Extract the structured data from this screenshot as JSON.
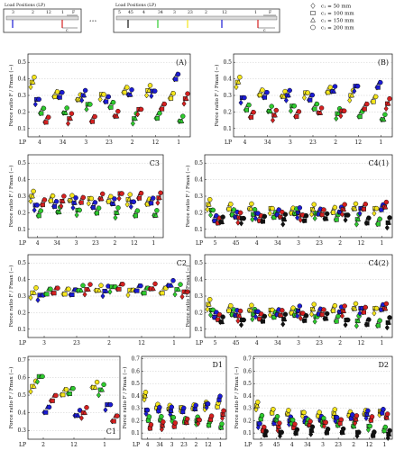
{
  "header": {
    "box_left_title": "Load Positions (LP)",
    "box_right_title": "Load Positions (LP)",
    "box_left_positions": [
      "3",
      "2",
      "12",
      "1"
    ],
    "box_right_positions": [
      "5",
      "45",
      "4",
      "34",
      "3",
      "23",
      "2",
      "12",
      "1"
    ],
    "force_label": "F",
    "force_sub": "max",
    "dim_label": "c",
    "dim_sub": "1",
    "ellipsis": "∘∘∘",
    "legend": [
      {
        "marker": "diamond",
        "label": "c₁ = 50 mm"
      },
      {
        "marker": "square",
        "label": "c₁ = 100 mm"
      },
      {
        "marker": "triangle",
        "label": "c₁ = 150 mm"
      },
      {
        "marker": "circle",
        "label": "c₁ = 200 mm"
      }
    ]
  },
  "colors": {
    "yellow": "#f5e61c",
    "green": "#2ecc2e",
    "blue": "#1b1bd6",
    "red": "#d62020",
    "black": "#111111",
    "grid": "#bbbbbb"
  },
  "chart_data": [
    {
      "id": "A",
      "label": "(A)",
      "label_pos": "top-right",
      "type": "scatter",
      "ylabel": "Force ratio F / Fmax (−)",
      "yticks": [
        "0.1",
        "0.2",
        "0.3",
        "0.4",
        "0.5"
      ],
      "ylim": [
        0.05,
        0.55
      ],
      "xlabel_prefix": "LP",
      "categories": [
        "4",
        "34",
        "3",
        "23",
        "2",
        "12",
        "1"
      ],
      "show_xticks": true,
      "series": [
        {
          "color": "yellow",
          "values": [
            0.38,
            0.31,
            0.28,
            0.3,
            0.33,
            0.33,
            0.3
          ]
        },
        {
          "color": "blue",
          "values": [
            0.27,
            0.3,
            0.3,
            0.28,
            0.31,
            0.32,
            0.41
          ]
        },
        {
          "color": "green",
          "values": [
            0.21,
            0.2,
            0.24,
            0.24,
            0.16,
            0.18,
            0.15
          ]
        },
        {
          "color": "red",
          "values": [
            0.15,
            0.16,
            0.16,
            0.18,
            0.21,
            0.23,
            0.28
          ]
        }
      ]
    },
    {
      "id": "B",
      "label": "(B)",
      "label_pos": "top-right",
      "type": "scatter",
      "ylabel": "Force ratio F / Fmax (−)",
      "yticks": [
        "0.1",
        "0.2",
        "0.3",
        "0.4",
        "0.5"
      ],
      "ylim": [
        0.05,
        0.55
      ],
      "xlabel_prefix": "LP",
      "categories": [
        "4",
        "34",
        "3",
        "23",
        "2",
        "12",
        "1"
      ],
      "show_xticks": true,
      "series": [
        {
          "color": "yellow",
          "values": [
            0.38,
            0.32,
            0.3,
            0.31,
            0.33,
            0.3,
            0.28
          ]
        },
        {
          "color": "blue",
          "values": [
            0.28,
            0.3,
            0.3,
            0.29,
            0.33,
            0.35,
            0.36
          ]
        },
        {
          "color": "green",
          "values": [
            0.23,
            0.21,
            0.23,
            0.23,
            0.19,
            0.19,
            0.16
          ]
        },
        {
          "color": "red",
          "values": [
            0.18,
            0.18,
            0.19,
            0.2,
            0.2,
            0.23,
            0.25
          ]
        }
      ]
    },
    {
      "id": "C3",
      "label": "C3",
      "label_pos": "top-right",
      "type": "scatter",
      "ylabel": "Force ratio F / Fmax (−)",
      "yticks": [
        "0.1",
        "0.2",
        "0.3",
        "0.4",
        "0.5"
      ],
      "ylim": [
        0.05,
        0.55
      ],
      "xlabel_prefix": "LP",
      "categories": [
        "4",
        "34",
        "3",
        "23",
        "2",
        "12",
        "1"
      ],
      "show_xticks": true,
      "series": [
        {
          "color": "yellow",
          "values": [
            0.3,
            0.29,
            0.28,
            0.28,
            0.28,
            0.28,
            0.27
          ]
        },
        {
          "color": "blue",
          "values": [
            0.24,
            0.25,
            0.26,
            0.25,
            0.26,
            0.26,
            0.27
          ]
        },
        {
          "color": "green",
          "values": [
            0.2,
            0.21,
            0.21,
            0.21,
            0.2,
            0.2,
            0.19
          ]
        },
        {
          "color": "red",
          "values": [
            0.26,
            0.27,
            0.28,
            0.29,
            0.31,
            0.3,
            0.29
          ]
        }
      ]
    },
    {
      "id": "C4(1)",
      "label": "C4(1)",
      "label_pos": "top-right",
      "type": "scatter",
      "ylabel": "Force ratio F / Fmax (−)",
      "yticks": [
        "0.1",
        "0.2",
        "0.3",
        "0.4",
        "0.5"
      ],
      "ylim": [
        0.05,
        0.55
      ],
      "xlabel_prefix": "LP",
      "categories": [
        "5",
        "45",
        "4",
        "34",
        "3",
        "23",
        "2",
        "12",
        "1"
      ],
      "show_xticks": true,
      "series": [
        {
          "color": "yellow",
          "values": [
            0.25,
            0.24,
            0.23,
            0.22,
            0.21,
            0.22,
            0.22,
            0.23,
            0.22
          ]
        },
        {
          "color": "green",
          "values": [
            0.21,
            0.2,
            0.19,
            0.19,
            0.2,
            0.19,
            0.17,
            0.16,
            0.15
          ]
        },
        {
          "color": "blue",
          "values": [
            0.17,
            0.18,
            0.19,
            0.2,
            0.2,
            0.21,
            0.21,
            0.22,
            0.23
          ]
        },
        {
          "color": "red",
          "values": [
            0.15,
            0.17,
            0.17,
            0.18,
            0.18,
            0.2,
            0.22,
            0.24,
            0.24
          ]
        },
        {
          "color": "black",
          "values": [
            0.15,
            0.16,
            0.16,
            0.16,
            0.17,
            0.17,
            0.18,
            0.15,
            0.14
          ]
        }
      ]
    },
    {
      "id": "C2",
      "label": "C2",
      "label_pos": "top-right",
      "type": "scatter",
      "ylabel": "Force ratio F / Fmax (−)",
      "yticks": [
        "0.1",
        "0.2",
        "0.3",
        "0.4",
        "0.5"
      ],
      "ylim": [
        0.05,
        0.55
      ],
      "xlabel_prefix": "LP",
      "categories": [
        "3",
        "23",
        "2",
        "12",
        "1"
      ],
      "show_xticks": true,
      "series": [
        {
          "color": "yellow",
          "values": [
            0.32,
            0.33,
            0.34,
            0.33,
            0.33
          ]
        },
        {
          "color": "blue",
          "values": [
            0.3,
            0.32,
            0.33,
            0.35,
            0.37
          ]
        },
        {
          "color": "green",
          "values": [
            0.33,
            0.34,
            0.35,
            0.33,
            0.34
          ]
        },
        {
          "color": "red",
          "values": [
            0.33,
            0.34,
            0.36,
            0.35,
            0.32
          ]
        }
      ]
    },
    {
      "id": "C4(2)",
      "label": "C4(2)",
      "label_pos": "top-right",
      "type": "scatter",
      "ylabel": "Force ratio F / Fmax (−)",
      "yticks": [
        "0.1",
        "0.2",
        "0.3",
        "0.4",
        "0.5"
      ],
      "ylim": [
        0.05,
        0.55
      ],
      "xlabel_prefix": "LP",
      "categories": [
        "5",
        "45",
        "4",
        "34",
        "3",
        "23",
        "2",
        "12",
        "1"
      ],
      "show_xticks": true,
      "series": [
        {
          "color": "yellow",
          "values": [
            0.25,
            0.23,
            0.22,
            0.21,
            0.21,
            0.22,
            0.23,
            0.23,
            0.22
          ]
        },
        {
          "color": "green",
          "values": [
            0.21,
            0.2,
            0.19,
            0.19,
            0.19,
            0.17,
            0.16,
            0.15,
            0.14
          ]
        },
        {
          "color": "blue",
          "values": [
            0.19,
            0.19,
            0.2,
            0.2,
            0.21,
            0.21,
            0.21,
            0.22,
            0.23
          ]
        },
        {
          "color": "red",
          "values": [
            0.17,
            0.18,
            0.18,
            0.19,
            0.19,
            0.2,
            0.21,
            0.22,
            0.23
          ]
        },
        {
          "color": "black",
          "values": [
            0.15,
            0.15,
            0.16,
            0.16,
            0.17,
            0.17,
            0.15,
            0.14,
            0.14
          ]
        }
      ]
    },
    {
      "id": "C1",
      "label": "C1",
      "label_pos": "bottom-right",
      "type": "scatter",
      "ylabel": "Force ratio F / Fmax (−)",
      "yticks": [
        "0.3",
        "0.4",
        "0.5",
        "0.6",
        "0.7"
      ],
      "ylim": [
        0.25,
        0.72
      ],
      "xlabel_prefix": "LP",
      "categories": [
        "2",
        "12",
        "1"
      ],
      "show_xticks": true,
      "series": [
        {
          "color": "yellow",
          "values": [
            0.55,
            0.52,
            0.55
          ]
        },
        {
          "color": "green",
          "values": [
            0.6,
            0.52,
            0.53
          ]
        },
        {
          "color": "blue",
          "values": [
            0.42,
            0.39,
            0.44
          ]
        },
        {
          "color": "red",
          "values": [
            0.48,
            0.4,
            0.37
          ]
        }
      ]
    },
    {
      "id": "D1",
      "label": "D1",
      "label_pos": "top-right",
      "type": "scatter",
      "ylabel": "Force ratio F / Fmax (−)",
      "yticks": [
        "0.1",
        "0.2",
        "0.3",
        "0.4",
        "0.5",
        "0.6",
        "0.7"
      ],
      "ylim": [
        0.05,
        0.72
      ],
      "xlabel_prefix": "LP",
      "categories": [
        "4",
        "34",
        "3",
        "23",
        "2",
        "12",
        "1"
      ],
      "show_xticks": true,
      "series": [
        {
          "color": "yellow",
          "values": [
            0.4,
            0.32,
            0.3,
            0.3,
            0.31,
            0.32,
            0.33
          ]
        },
        {
          "color": "blue",
          "values": [
            0.28,
            0.29,
            0.28,
            0.29,
            0.3,
            0.33,
            0.38
          ]
        },
        {
          "color": "green",
          "values": [
            0.22,
            0.21,
            0.22,
            0.2,
            0.2,
            0.18,
            0.15
          ]
        },
        {
          "color": "red",
          "values": [
            0.15,
            0.16,
            0.17,
            0.19,
            0.2,
            0.22,
            0.25
          ]
        }
      ]
    },
    {
      "id": "D2",
      "label": "D2",
      "label_pos": "top-right",
      "type": "scatter",
      "ylabel": "Force ratio F / Fmax (−)",
      "yticks": [
        "0.1",
        "0.2",
        "0.3",
        "0.4",
        "0.5",
        "0.6",
        "0.7"
      ],
      "ylim": [
        0.05,
        0.72
      ],
      "xlabel_prefix": "LP",
      "categories": [
        "5",
        "45",
        "4",
        "34",
        "3",
        "23",
        "2",
        "12",
        "1"
      ],
      "show_xticks": true,
      "series": [
        {
          "color": "yellow",
          "values": [
            0.32,
            0.28,
            0.26,
            0.26,
            0.25,
            0.26,
            0.26,
            0.26,
            0.27
          ]
        },
        {
          "color": "blue",
          "values": [
            0.17,
            0.19,
            0.2,
            0.21,
            0.21,
            0.22,
            0.23,
            0.25,
            0.28
          ]
        },
        {
          "color": "green",
          "values": [
            0.23,
            0.21,
            0.2,
            0.19,
            0.19,
            0.18,
            0.16,
            0.15,
            0.13
          ]
        },
        {
          "color": "red",
          "values": [
            0.13,
            0.15,
            0.16,
            0.17,
            0.18,
            0.19,
            0.21,
            0.22,
            0.23
          ]
        },
        {
          "color": "black",
          "values": [
            0.09,
            0.1,
            0.11,
            0.12,
            0.12,
            0.11,
            0.1,
            0.09,
            0.09
          ]
        }
      ]
    }
  ]
}
